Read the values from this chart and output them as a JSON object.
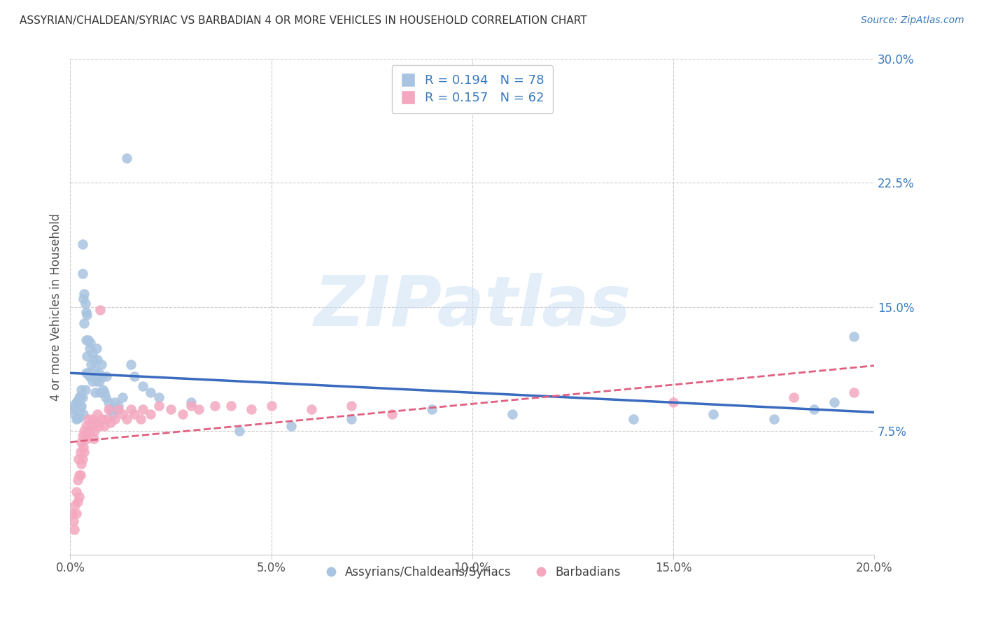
{
  "title": "ASSYRIAN/CHALDEAN/SYRIAC VS BARBADIAN 4 OR MORE VEHICLES IN HOUSEHOLD CORRELATION CHART",
  "source": "Source: ZipAtlas.com",
  "ylabel": "4 or more Vehicles in Household",
  "xlim": [
    0.0,
    0.2
  ],
  "ylim": [
    0.0,
    0.3
  ],
  "xticks": [
    0.0,
    0.05,
    0.1,
    0.15,
    0.2
  ],
  "xticklabels": [
    "0.0%",
    "5.0%",
    "10.0%",
    "15.0%",
    "20.0%"
  ],
  "yticks": [
    0.0,
    0.075,
    0.15,
    0.225,
    0.3
  ],
  "yticklabels": [
    "",
    "7.5%",
    "15.0%",
    "22.5%",
    "30.0%"
  ],
  "blue_R": 0.194,
  "blue_N": 78,
  "pink_R": 0.157,
  "pink_N": 62,
  "blue_label": "Assyrians/Chaldeans/Syriacs",
  "pink_label": "Barbadians",
  "blue_color": "#a8c4e0",
  "pink_color": "#f4a8c0",
  "blue_line_color": "#3a6bbf",
  "pink_line_color": "#e06080",
  "legend_text_color": "#3a7abf",
  "watermark": "ZIPatlas",
  "blue_x": [
    0.0008,
    0.001,
    0.0012,
    0.0015,
    0.0015,
    0.0018,
    0.0018,
    0.002,
    0.002,
    0.0022,
    0.0022,
    0.0025,
    0.0025,
    0.0028,
    0.0028,
    0.003,
    0.003,
    0.003,
    0.0032,
    0.0033,
    0.0035,
    0.0035,
    0.0038,
    0.0038,
    0.004,
    0.004,
    0.004,
    0.0042,
    0.0042,
    0.0045,
    0.0045,
    0.0048,
    0.0048,
    0.005,
    0.005,
    0.0052,
    0.0055,
    0.0055,
    0.0058,
    0.006,
    0.0062,
    0.0065,
    0.0065,
    0.0068,
    0.007,
    0.0072,
    0.0075,
    0.0078,
    0.008,
    0.0082,
    0.0085,
    0.0088,
    0.009,
    0.0095,
    0.01,
    0.0105,
    0.011,
    0.0115,
    0.012,
    0.013,
    0.014,
    0.015,
    0.016,
    0.018,
    0.02,
    0.022,
    0.03,
    0.042,
    0.055,
    0.07,
    0.09,
    0.11,
    0.14,
    0.16,
    0.175,
    0.185,
    0.19,
    0.195
  ],
  "blue_y": [
    0.09,
    0.088,
    0.085,
    0.092,
    0.082,
    0.093,
    0.083,
    0.092,
    0.085,
    0.095,
    0.083,
    0.096,
    0.089,
    0.1,
    0.09,
    0.188,
    0.17,
    0.095,
    0.155,
    0.085,
    0.158,
    0.14,
    0.152,
    0.1,
    0.147,
    0.13,
    0.11,
    0.145,
    0.12,
    0.13,
    0.11,
    0.125,
    0.108,
    0.128,
    0.108,
    0.115,
    0.122,
    0.105,
    0.118,
    0.112,
    0.098,
    0.125,
    0.105,
    0.118,
    0.11,
    0.105,
    0.098,
    0.115,
    0.108,
    0.1,
    0.098,
    0.095,
    0.108,
    0.092,
    0.088,
    0.085,
    0.092,
    0.088,
    0.09,
    0.095,
    0.24,
    0.115,
    0.108,
    0.102,
    0.098,
    0.095,
    0.092,
    0.075,
    0.078,
    0.082,
    0.088,
    0.085,
    0.082,
    0.085,
    0.082,
    0.088,
    0.092,
    0.132
  ],
  "pink_x": [
    0.0005,
    0.0008,
    0.001,
    0.0012,
    0.0015,
    0.0015,
    0.0018,
    0.0018,
    0.002,
    0.0022,
    0.0022,
    0.0025,
    0.0025,
    0.0028,
    0.0028,
    0.003,
    0.003,
    0.0032,
    0.0035,
    0.0035,
    0.0038,
    0.004,
    0.0042,
    0.0045,
    0.0048,
    0.005,
    0.0055,
    0.0058,
    0.006,
    0.0065,
    0.0068,
    0.007,
    0.0075,
    0.008,
    0.0085,
    0.009,
    0.0095,
    0.01,
    0.011,
    0.012,
    0.013,
    0.014,
    0.015,
    0.016,
    0.0175,
    0.018,
    0.02,
    0.022,
    0.025,
    0.028,
    0.03,
    0.032,
    0.036,
    0.04,
    0.045,
    0.05,
    0.06,
    0.07,
    0.08,
    0.15,
    0.18,
    0.195
  ],
  "pink_y": [
    0.025,
    0.02,
    0.015,
    0.03,
    0.038,
    0.025,
    0.045,
    0.032,
    0.058,
    0.048,
    0.035,
    0.062,
    0.048,
    0.068,
    0.055,
    0.072,
    0.058,
    0.065,
    0.075,
    0.062,
    0.072,
    0.078,
    0.07,
    0.082,
    0.075,
    0.078,
    0.082,
    0.07,
    0.075,
    0.08,
    0.085,
    0.078,
    0.148,
    0.082,
    0.078,
    0.082,
    0.088,
    0.08,
    0.082,
    0.088,
    0.085,
    0.082,
    0.088,
    0.085,
    0.082,
    0.088,
    0.085,
    0.09,
    0.088,
    0.085,
    0.09,
    0.088,
    0.09,
    0.09,
    0.088,
    0.09,
    0.088,
    0.09,
    0.085,
    0.092,
    0.095,
    0.098
  ]
}
